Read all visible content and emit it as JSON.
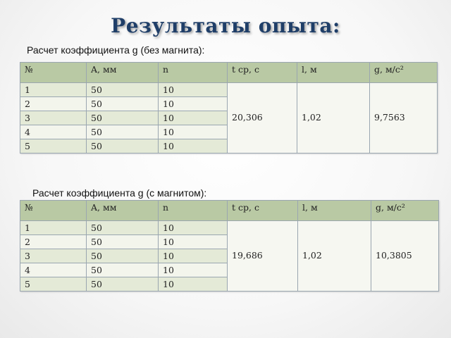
{
  "title": "Результаты опыта:",
  "table1": {
    "caption": "Расчет коэффициента g (без магнита):",
    "headers": [
      "№",
      "A, мм",
      "n",
      "t ср, с",
      "l, м",
      "g, м/с²"
    ],
    "rows": [
      {
        "num": "1",
        "a": "50",
        "n": "10"
      },
      {
        "num": "2",
        "a": "50",
        "n": "10"
      },
      {
        "num": "3",
        "a": "50",
        "n": "10"
      },
      {
        "num": "4",
        "a": "50",
        "n": "10"
      },
      {
        "num": "5",
        "a": "50",
        "n": "10"
      }
    ],
    "t_avg": "20,306",
    "l": "1,02",
    "g": "9,7563"
  },
  "table2": {
    "caption": "Расчет коэффициента g (с магнитом):",
    "headers": [
      "№",
      "A, мм",
      "n",
      "t ср, с",
      "l, м",
      "g, м/с²"
    ],
    "rows": [
      {
        "num": "1",
        "a": "50",
        "n": "10"
      },
      {
        "num": "2",
        "a": "50",
        "n": "10"
      },
      {
        "num": "3",
        "a": "50",
        "n": "10"
      },
      {
        "num": "4",
        "a": "50",
        "n": "10"
      },
      {
        "num": "5",
        "a": "50",
        "n": "10"
      }
    ],
    "t_avg": "19,686",
    "l": "1,02",
    "g": "10,3805"
  },
  "colors": {
    "title": "#1f3e68",
    "header_bg": "#b9c9a4",
    "row_odd_bg": "#e4ead7",
    "row_even_bg": "#f3f5ec",
    "border": "#9aa6b0"
  }
}
